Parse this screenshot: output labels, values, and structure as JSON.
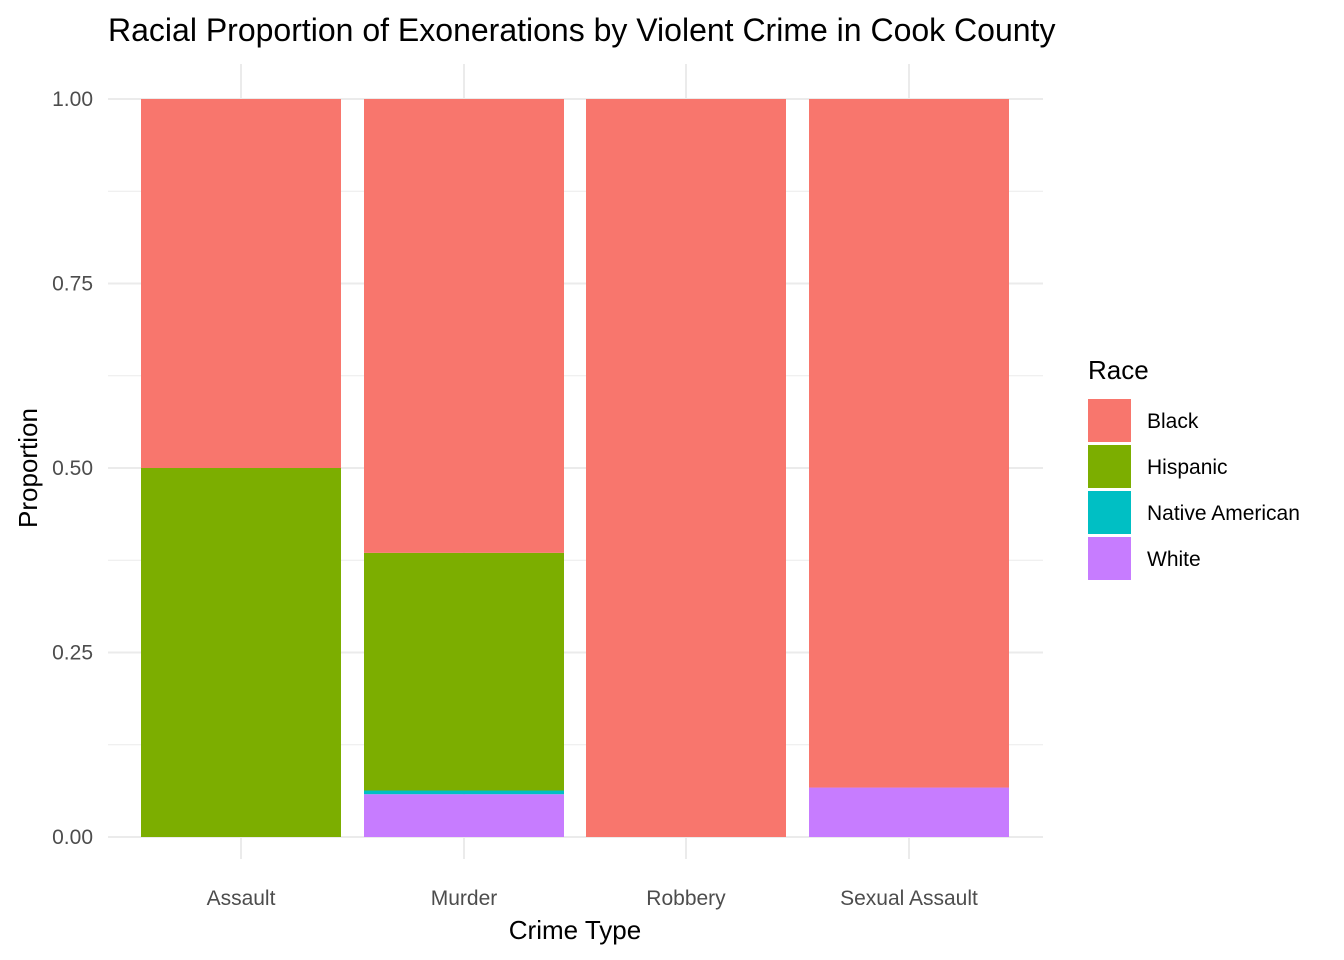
{
  "chart_data": {
    "type": "bar",
    "stacked": true,
    "title": "Racial Proportion of Exonerations by Violent Crime in Cook County",
    "xlabel": "Crime Type",
    "ylabel": "Proportion",
    "ylim": [
      0,
      1
    ],
    "yticks": [
      0.0,
      0.25,
      0.5,
      0.75,
      1.0
    ],
    "ytick_labels": [
      "0.00",
      "0.25",
      "0.50",
      "0.75",
      "1.00"
    ],
    "categories": [
      "Assault",
      "Murder",
      "Robbery",
      "Sexual Assault"
    ],
    "series": [
      {
        "name": "White",
        "color": "#C77CFF",
        "values": [
          0.0,
          0.058,
          0.0,
          0.067
        ]
      },
      {
        "name": "Native American",
        "color": "#00BFC4",
        "values": [
          0.0,
          0.005,
          0.0,
          0.0
        ]
      },
      {
        "name": "Hispanic",
        "color": "#7CAE00",
        "values": [
          0.5,
          0.322,
          0.0,
          0.0
        ]
      },
      {
        "name": "Black",
        "color": "#F8766D",
        "values": [
          0.5,
          0.615,
          1.0,
          0.933
        ]
      }
    ],
    "legend": {
      "title": "Race",
      "position": "right",
      "entries": [
        "Black",
        "Hispanic",
        "Native American",
        "White"
      ]
    },
    "grid": true,
    "grid_color": "#ebebeb"
  }
}
